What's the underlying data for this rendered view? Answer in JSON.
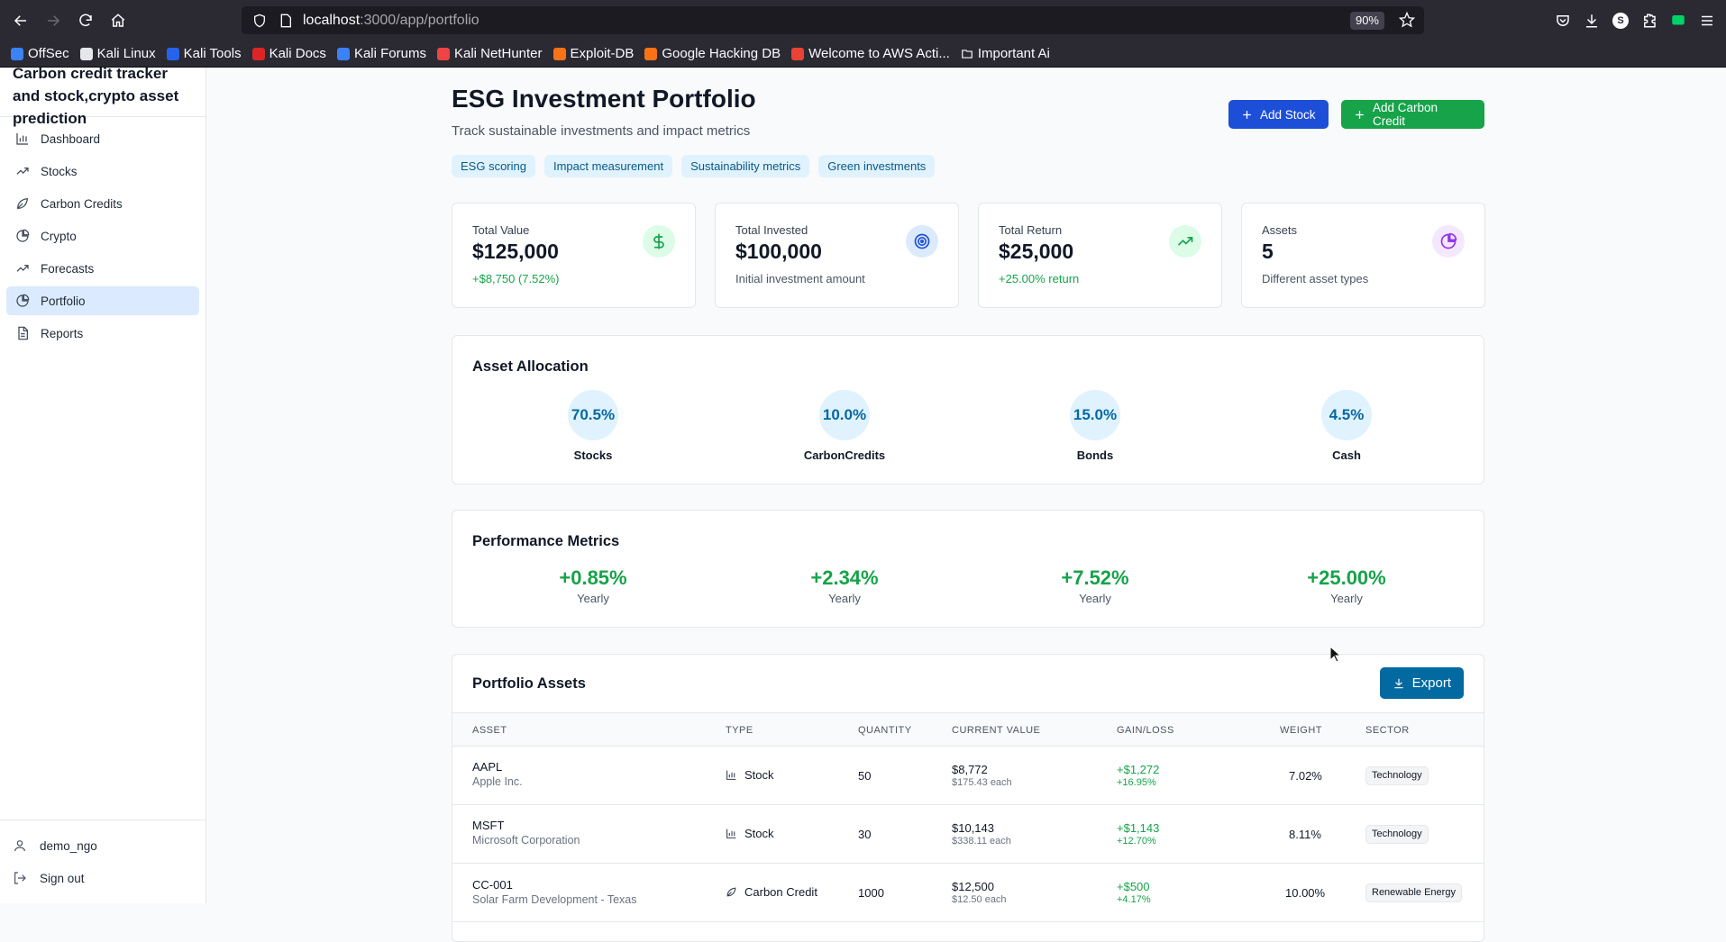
{
  "browser": {
    "url_host": "localhost",
    "url_path": ":3000/app/portfolio",
    "zoom": "90%",
    "bookmarks": [
      "OffSec",
      "Kali Linux",
      "Kali Tools",
      "Kali Docs",
      "Kali Forums",
      "Kali NetHunter",
      "Exploit-DB",
      "Google Hacking DB",
      "Welcome to AWS Acti...",
      "Important Ai"
    ],
    "profile_letter": "S"
  },
  "sidebar": {
    "title": "Carbon credit tracker and stock,crypto asset prediction",
    "items": [
      {
        "label": "Dashboard",
        "icon": "bar-chart-icon"
      },
      {
        "label": "Stocks",
        "icon": "trending-up-icon"
      },
      {
        "label": "Carbon Credits",
        "icon": "leaf-icon"
      },
      {
        "label": "Crypto",
        "icon": "pie-chart-icon"
      },
      {
        "label": "Forecasts",
        "icon": "trending-up-icon"
      },
      {
        "label": "Portfolio",
        "icon": "pie-chart-icon"
      },
      {
        "label": "Reports",
        "icon": "file-text-icon"
      }
    ],
    "active": "Portfolio",
    "user": "demo_ngo",
    "signout": "Sign out"
  },
  "header": {
    "title": "ESG Investment Portfolio",
    "subtitle": "Track sustainable investments and impact metrics",
    "tags": [
      "ESG scoring",
      "Impact measurement",
      "Sustainability metrics",
      "Green investments"
    ],
    "add_stock": "Add Stock",
    "add_carbon": "Add Carbon Credit"
  },
  "stats": [
    {
      "label": "Total Value",
      "value": "$125,000",
      "sub": "+$8,750 (7.52%)",
      "sub_green": true,
      "icon": "dollar-icon",
      "color": "#16a34a",
      "bg": "#dcfce7"
    },
    {
      "label": "Total Invested",
      "value": "$100,000",
      "sub": "Initial investment amount",
      "sub_green": false,
      "icon": "target-icon",
      "color": "#1d4ed8",
      "bg": "#dbeafe"
    },
    {
      "label": "Total Return",
      "value": "$25,000",
      "sub": "+25.00% return",
      "sub_green": true,
      "icon": "trending-up-icon",
      "color": "#16a34a",
      "bg": "#dcfce7"
    },
    {
      "label": "Assets",
      "value": "5",
      "sub": "Different asset types",
      "sub_green": false,
      "icon": "pie-chart-icon",
      "color": "#9333ea",
      "bg": "#f3e8ff"
    }
  ],
  "allocation": {
    "title": "Asset Allocation",
    "items": [
      {
        "value": "70.5%",
        "label": "Stocks"
      },
      {
        "value": "10.0%",
        "label": "CarbonCredits"
      },
      {
        "value": "15.0%",
        "label": "Bonds"
      },
      {
        "value": "4.5%",
        "label": "Cash"
      }
    ]
  },
  "performance": {
    "title": "Performance Metrics",
    "items": [
      {
        "value": "+0.85%",
        "label": "Yearly"
      },
      {
        "value": "+2.34%",
        "label": "Yearly"
      },
      {
        "value": "+7.52%",
        "label": "Yearly"
      },
      {
        "value": "+25.00%",
        "label": "Yearly"
      }
    ]
  },
  "assets": {
    "title": "Portfolio Assets",
    "export": "Export",
    "columns": [
      "ASSET",
      "TYPE",
      "QUANTITY",
      "CURRENT VALUE",
      "GAIN/LOSS",
      "WEIGHT",
      "SECTOR"
    ],
    "rows": [
      {
        "symbol": "AAPL",
        "name": "Apple Inc.",
        "type": "Stock",
        "type_icon": "bar-chart-icon",
        "quantity": "50",
        "value": "$8,772",
        "value_each": "$175.43 each",
        "gain": "+$1,272",
        "gain_pct": "+16.95%",
        "weight": "7.02%",
        "sector": "Technology"
      },
      {
        "symbol": "MSFT",
        "name": "Microsoft Corporation",
        "type": "Stock",
        "type_icon": "bar-chart-icon",
        "quantity": "30",
        "value": "$10,143",
        "value_each": "$338.11 each",
        "gain": "+$1,143",
        "gain_pct": "+12.70%",
        "weight": "8.11%",
        "sector": "Technology"
      },
      {
        "symbol": "CC-001",
        "name": "Solar Farm Development - Texas",
        "type": "Carbon Credit",
        "type_icon": "leaf-icon",
        "quantity": "1000",
        "value": "$12,500",
        "value_each": "$12.50 each",
        "gain": "+$500",
        "gain_pct": "+4.17%",
        "weight": "10.00%",
        "sector": "Renewable Energy"
      }
    ]
  }
}
